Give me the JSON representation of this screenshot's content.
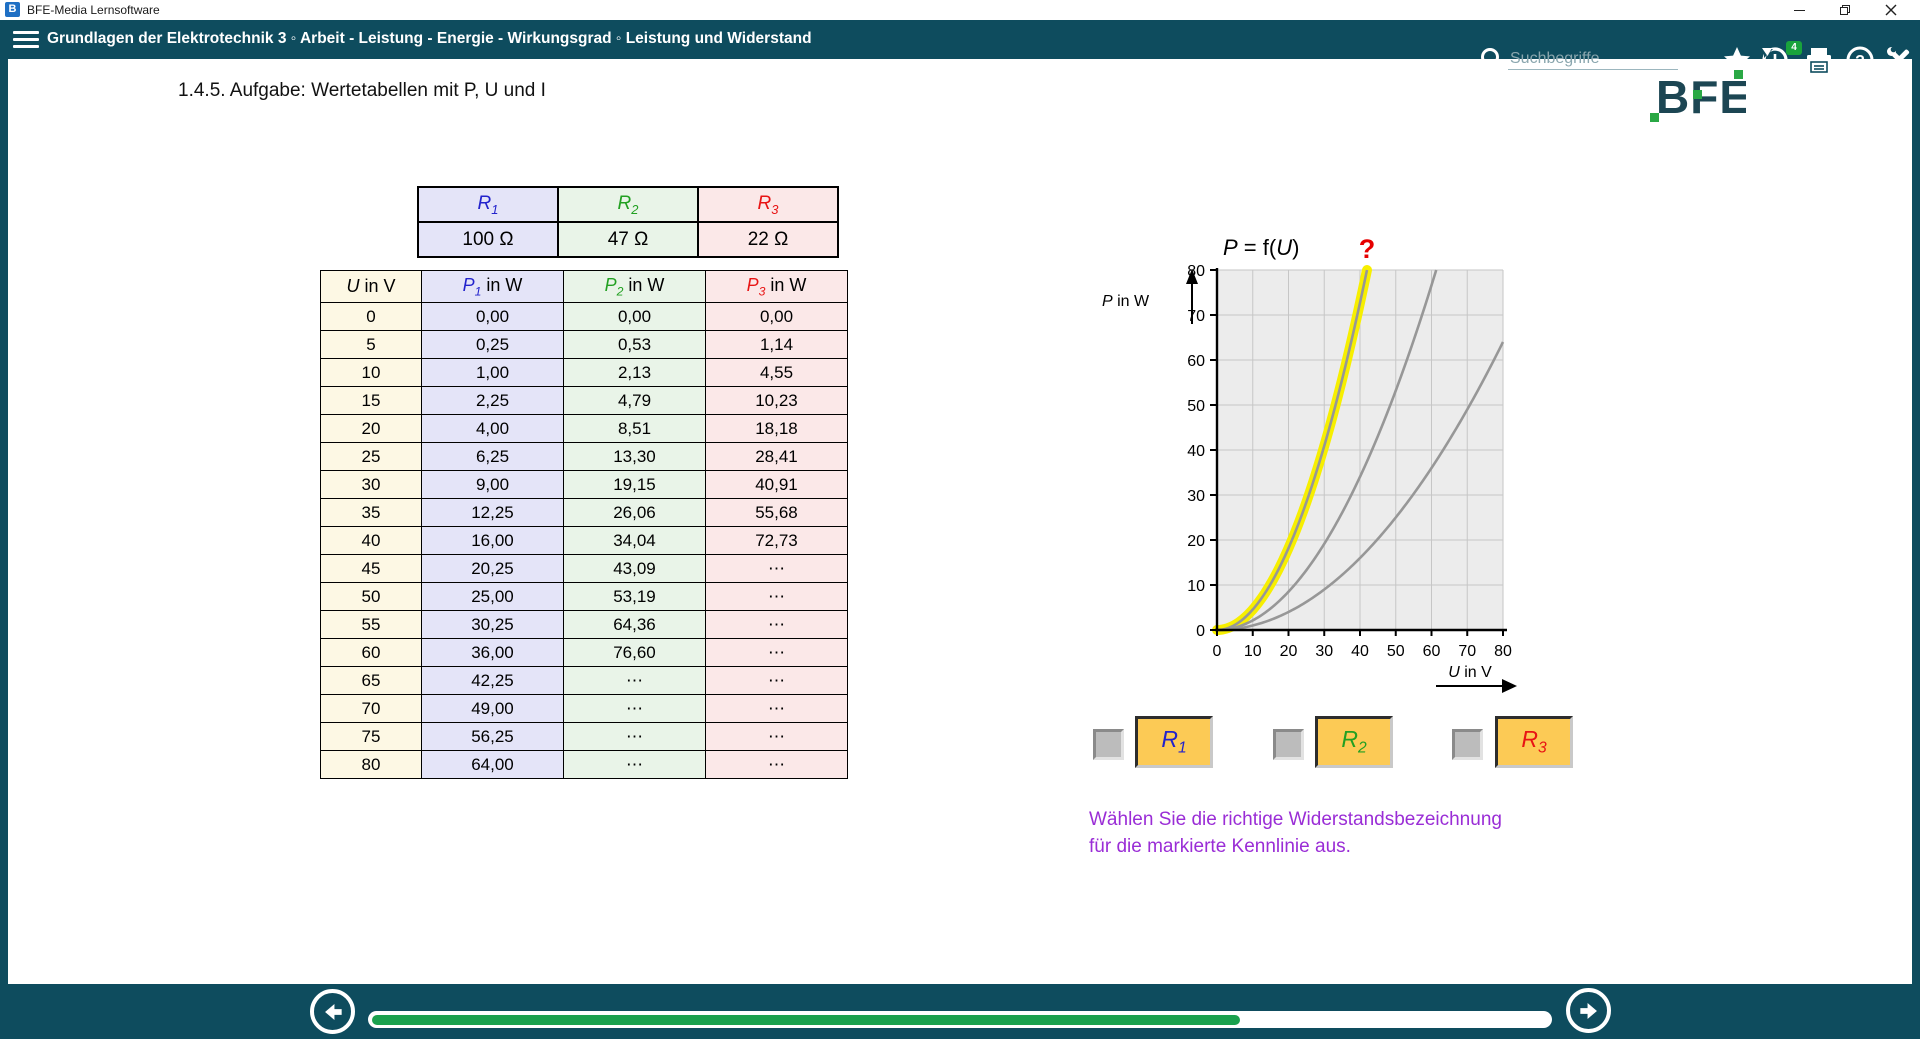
{
  "window": {
    "app_title": "BFE-Media Lernsoftware"
  },
  "navbar": {
    "breadcrumb": "Grundlagen der Elektrotechnik 3 ◦ Arbeit - Leistung - Energie - Wirkungsgrad ◦ Leistung und Widerstand",
    "search_placeholder": "Suchbegriffe",
    "history_badge": "4",
    "icons": [
      "search",
      "favorites-star",
      "history",
      "print",
      "help",
      "tools"
    ]
  },
  "page": {
    "title": "1.4.5. Aufgabe: Wertetabellen mit P, U und I",
    "logo_text": "BFE"
  },
  "resistor_table": {
    "columns": [
      {
        "sym": "R",
        "sub": "1",
        "color": "#2222cc",
        "bg": "#e4e4f8",
        "value": "100 Ω"
      },
      {
        "sym": "R",
        "sub": "2",
        "color": "#22a022",
        "bg": "#e9f4e8",
        "value": "47 Ω"
      },
      {
        "sym": "R",
        "sub": "3",
        "color": "#e81414",
        "bg": "#fbe8e8",
        "value": "22 Ω"
      }
    ]
  },
  "value_table": {
    "u_header": {
      "sym": "U",
      "rest": " in V",
      "bg": "#fdf8e4"
    },
    "p_headers": [
      {
        "sym": "P",
        "sub": "1",
        "rest": " in W",
        "color": "#2222cc",
        "bg": "#e4e4f8"
      },
      {
        "sym": "P",
        "sub": "2",
        "rest": " in W",
        "color": "#22a022",
        "bg": "#e9f4e8"
      },
      {
        "sym": "P",
        "sub": "3",
        "rest": " in W",
        "color": "#e81414",
        "bg": "#fbe8e8"
      }
    ],
    "rows": [
      [
        "0",
        "0,00",
        "0,00",
        "0,00"
      ],
      [
        "5",
        "0,25",
        "0,53",
        "1,14"
      ],
      [
        "10",
        "1,00",
        "2,13",
        "4,55"
      ],
      [
        "15",
        "2,25",
        "4,79",
        "10,23"
      ],
      [
        "20",
        "4,00",
        "8,51",
        "18,18"
      ],
      [
        "25",
        "6,25",
        "13,30",
        "28,41"
      ],
      [
        "30",
        "9,00",
        "19,15",
        "40,91"
      ],
      [
        "35",
        "12,25",
        "26,06",
        "55,68"
      ],
      [
        "40",
        "16,00",
        "34,04",
        "72,73"
      ],
      [
        "45",
        "20,25",
        "43,09",
        "⋯"
      ],
      [
        "50",
        "25,00",
        "53,19",
        "⋯"
      ],
      [
        "55",
        "30,25",
        "64,36",
        "⋯"
      ],
      [
        "60",
        "36,00",
        "76,60",
        "⋯"
      ],
      [
        "65",
        "42,25",
        "⋯",
        "⋯"
      ],
      [
        "70",
        "49,00",
        "⋯",
        "⋯"
      ],
      [
        "75",
        "56,25",
        "⋯",
        "⋯"
      ],
      [
        "80",
        "64,00",
        "⋯",
        "⋯"
      ]
    ],
    "bold_cells": [
      [
        3,
        1
      ],
      [
        5,
        2
      ],
      [
        7,
        3
      ],
      [
        9,
        1
      ],
      [
        11,
        2
      ]
    ]
  },
  "chart_data": {
    "type": "line",
    "title": "P = f(U)",
    "title_syms": {
      "y": "P",
      "x": "U"
    },
    "xlabel": "U in V",
    "ylabel": "P in W",
    "xlim": [
      0,
      80
    ],
    "ylim": [
      0,
      80
    ],
    "xticks": [
      0,
      10,
      20,
      30,
      40,
      50,
      60,
      70,
      80
    ],
    "yticks": [
      0,
      10,
      20,
      30,
      40,
      50,
      60,
      70,
      80
    ],
    "grid": true,
    "relation": "P = U²/R",
    "series": [
      {
        "name": "R1",
        "resistance_ohm": 100,
        "highlighted": false
      },
      {
        "name": "R2",
        "resistance_ohm": 47,
        "highlighted": false
      },
      {
        "name": "R3",
        "resistance_ohm": 22,
        "highlighted": true
      }
    ],
    "curve_color": "#979797",
    "highlight_color": "#f7ef00",
    "plot_bg": "#ececec",
    "grid_color": "#c6c6c6",
    "unknown_marker": {
      "text": "?",
      "color": "#e60000"
    }
  },
  "answers": {
    "options": [
      {
        "sym": "R",
        "sub": "1",
        "color": "#2222cc",
        "checked": false
      },
      {
        "sym": "R",
        "sub": "2",
        "color": "#22a022",
        "checked": false
      },
      {
        "sym": "R",
        "sub": "3",
        "color": "#e81414",
        "checked": false
      }
    ]
  },
  "instruction": {
    "lines": [
      "Wählen Sie die richtige Widerstandsbezeichnung",
      "für die markierte Kennlinie aus."
    ],
    "color": "#9a2dd6"
  },
  "progress": {
    "value_pct": 74
  },
  "colors": {
    "bar_teal": "#0e4c5e",
    "progress_green": "#1aa14e",
    "button_orange": "#fcca55"
  }
}
